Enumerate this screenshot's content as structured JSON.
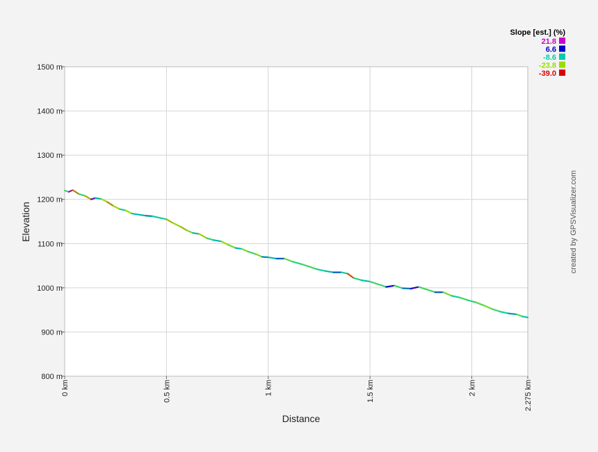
{
  "chart_data": {
    "type": "line",
    "xlabel": "Distance",
    "ylabel": "Elevation",
    "xlim": [
      0,
      2.275
    ],
    "ylim": [
      800,
      1500
    ],
    "x_ticks": [
      {
        "value": 0,
        "label": "0 km"
      },
      {
        "value": 0.5,
        "label": "0.5 km"
      },
      {
        "value": 1,
        "label": "1 km"
      },
      {
        "value": 1.5,
        "label": "1.5 km"
      },
      {
        "value": 2,
        "label": "2 km"
      },
      {
        "value": 2.275,
        "label": "2.275 km"
      }
    ],
    "y_ticks": [
      {
        "value": 800,
        "label": "800 m"
      },
      {
        "value": 900,
        "label": "900 m"
      },
      {
        "value": 1000,
        "label": "1000 m"
      },
      {
        "value": 1100,
        "label": "1100 m"
      },
      {
        "value": 1200,
        "label": "1200 m"
      },
      {
        "value": 1300,
        "label": "1300 m"
      },
      {
        "value": 1400,
        "label": "1400 m"
      },
      {
        "value": 1500,
        "label": "1500 m"
      }
    ],
    "grid": true,
    "legend": {
      "title": "Slope [est.] (%)",
      "placement": "top-right",
      "entries": [
        {
          "label": "21.8",
          "color": "#cc00cc"
        },
        {
          "label": "6.6",
          "color": "#0000cc"
        },
        {
          "label": "-8.6",
          "color": "#00ccaa"
        },
        {
          "label": "-23.8",
          "color": "#99dd00"
        },
        {
          "label": "-39.0",
          "color": "#dd0000"
        }
      ]
    },
    "series": [
      {
        "x": [
          0,
          0.02,
          0.04,
          0.07,
          0.1,
          0.13,
          0.15,
          0.18,
          0.21,
          0.24,
          0.27,
          0.3,
          0.33,
          0.37,
          0.4,
          0.43,
          0.47,
          0.5,
          0.53,
          0.57,
          0.6,
          0.63,
          0.66,
          0.7,
          0.73,
          0.77,
          0.8,
          0.84,
          0.87,
          0.9,
          0.94,
          0.97,
          1.0,
          1.04,
          1.08,
          1.12,
          1.16,
          1.2,
          1.24,
          1.28,
          1.32,
          1.36,
          1.39,
          1.42,
          1.46,
          1.5,
          1.54,
          1.58,
          1.62,
          1.66,
          1.7,
          1.74,
          1.78,
          1.82,
          1.86,
          1.9,
          1.94,
          1.98,
          2.02,
          2.06,
          2.1,
          2.14,
          2.18,
          2.22,
          2.25,
          2.275
        ],
        "y": [
          1220,
          1217,
          1221,
          1212,
          1208,
          1200,
          1203,
          1201,
          1194,
          1185,
          1178,
          1175,
          1168,
          1165,
          1163,
          1162,
          1158,
          1155,
          1147,
          1138,
          1130,
          1124,
          1122,
          1112,
          1108,
          1105,
          1098,
          1090,
          1088,
          1082,
          1076,
          1070,
          1069,
          1066,
          1066,
          1059,
          1054,
          1048,
          1042,
          1038,
          1035,
          1035,
          1032,
          1022,
          1017,
          1014,
          1008,
          1002,
          1005,
          999,
          998,
          1002,
          996,
          990,
          990,
          982,
          978,
          972,
          967,
          960,
          952,
          946,
          942,
          940,
          935,
          933
        ]
      }
    ]
  },
  "credit": "created by GPSVisualizer.com"
}
